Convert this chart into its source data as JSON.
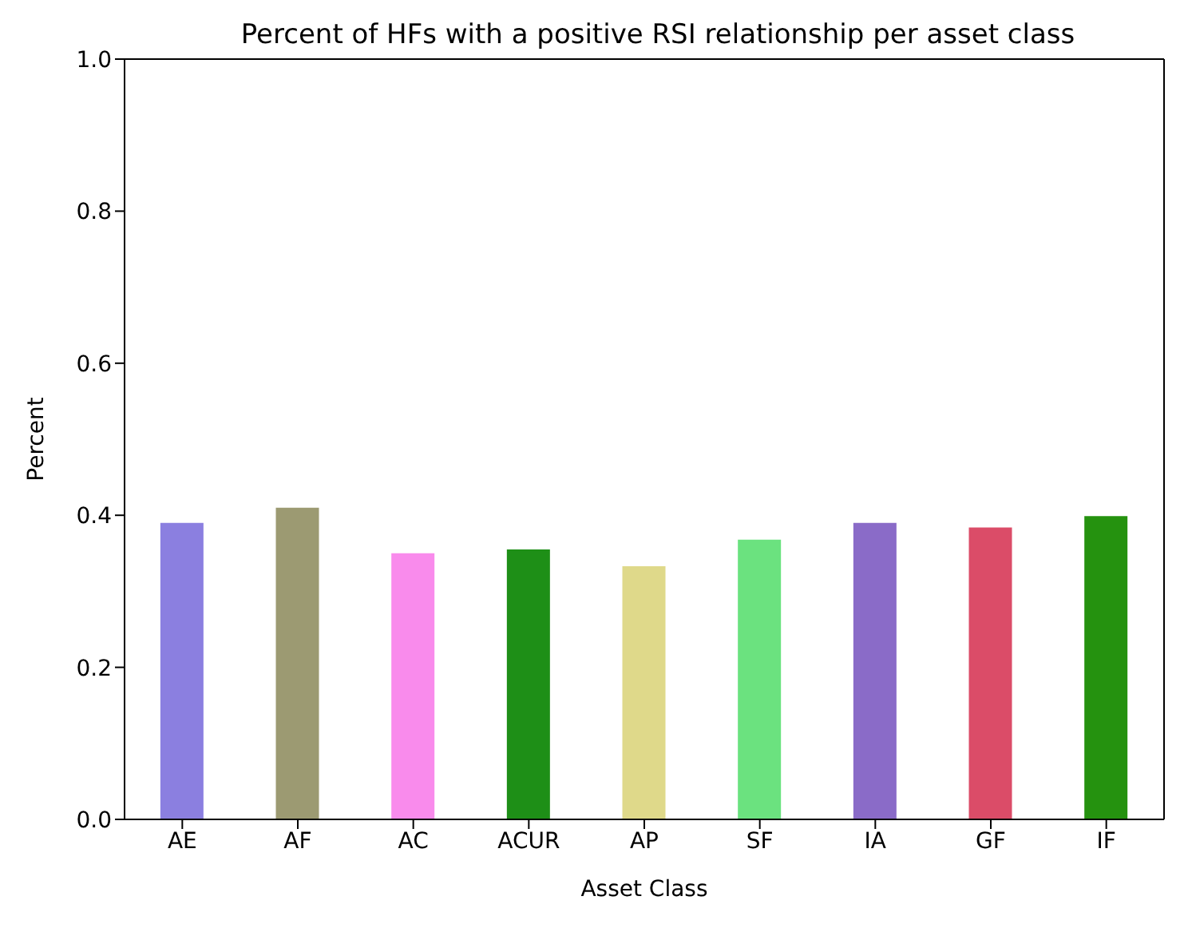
{
  "chart_data": {
    "type": "bar",
    "title": "Percent of HFs with a positive RSI relationship per asset class",
    "xlabel": "Asset Class",
    "ylabel": "Percent",
    "categories": [
      "AE",
      "AF",
      "AC",
      "ACUR",
      "AP",
      "SF",
      "IA",
      "GF",
      "IF"
    ],
    "values": [
      0.39,
      0.41,
      0.35,
      0.355,
      0.333,
      0.368,
      0.39,
      0.384,
      0.399
    ],
    "colors": [
      "#8b7fe0",
      "#9c9a72",
      "#f98bec",
      "#1e8f17",
      "#dfd98a",
      "#6be27f",
      "#8a6bc8",
      "#db4c68",
      "#25920f"
    ],
    "ylim": [
      0,
      1
    ],
    "yticks": [
      {
        "value": 0,
        "label": "0.0"
      },
      0.2,
      0.4,
      0.6,
      0.8,
      {
        "value": 1,
        "label": "1.0"
      }
    ],
    "grid": false,
    "legend": false
  }
}
